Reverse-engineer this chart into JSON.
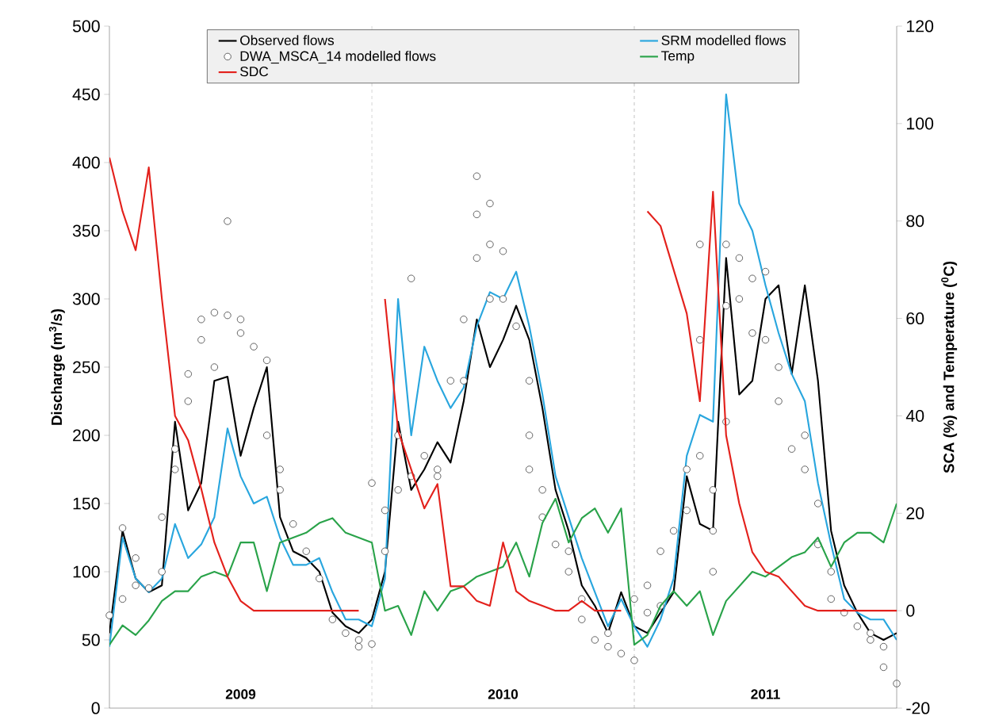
{
  "chart_data": {
    "type": "line",
    "ylabel": "Discharge (m$^{3}$/s)",
    "y2label": "SCA (%) and Temperature ($^{0}$C)",
    "categories": [
      null,
      null,
      null,
      null,
      null,
      null,
      null,
      null,
      null,
      null,
      null,
      null,
      null,
      null,
      null,
      null,
      null,
      null,
      null,
      null,
      null,
      null,
      null,
      null,
      null,
      null,
      null,
      null,
      null,
      null,
      null,
      null,
      null,
      null,
      null,
      null,
      null,
      null,
      null,
      null,
      null,
      null,
      null,
      null,
      null,
      null,
      null,
      null,
      null,
      null,
      null,
      null,
      null,
      null,
      null,
      null,
      null,
      null,
      null,
      null,
      null
    ],
    "ylim": [
      0,
      500
    ],
    "yticks": [
      0,
      50,
      100,
      150,
      200,
      250,
      300,
      350,
      400,
      450,
      500
    ],
    "y2lim": [
      -20,
      120
    ],
    "y2ticks": [
      -20,
      0,
      20,
      40,
      60,
      80,
      100,
      120
    ],
    "tick_labels": "y",
    "legend": "top",
    "annotations": [
      "2009",
      "2010",
      "2011"
    ],
    "series": [
      {
        "name": "Observed flows",
        "color": "#000000",
        "values": [
          55,
          130,
          95,
          85,
          90,
          210,
          145,
          165,
          240,
          243,
          185,
          220,
          250,
          140,
          115,
          110,
          100,
          70,
          60,
          55,
          65,
          100,
          210,
          160,
          175,
          195,
          180,
          225,
          285,
          250,
          270,
          295,
          270,
          220,
          160,
          130,
          90,
          75,
          55,
          85,
          60,
          55,
          70,
          85,
          170,
          135,
          130,
          330,
          230,
          240,
          300,
          310,
          245,
          310,
          240,
          130,
          90,
          70,
          55,
          50,
          55
        ]
      },
      {
        "name": "SRM modelled flows",
        "color": "#29a6de",
        "values": [
          45,
          125,
          95,
          85,
          95,
          135,
          110,
          120,
          140,
          205,
          170,
          150,
          155,
          125,
          105,
          105,
          110,
          85,
          65,
          65,
          60,
          95,
          300,
          200,
          265,
          240,
          220,
          235,
          280,
          305,
          300,
          320,
          280,
          230,
          170,
          140,
          110,
          85,
          60,
          80,
          60,
          45,
          65,
          95,
          185,
          215,
          210,
          450,
          370,
          350,
          310,
          275,
          245,
          225,
          165,
          120,
          80,
          70,
          65,
          65,
          50
        ]
      },
      {
        "name": "DWA_MSCA_14 modelled flows",
        "type": "scatter",
        "marker": "circle",
        "color": "#404040",
        "values": [
          68,
          80,
          110,
          88,
          100,
          175,
          225,
          270,
          250,
          288,
          285,
          265,
          255,
          175,
          135,
          115,
          95,
          65,
          55,
          45,
          47,
          115,
          160,
          170,
          185,
          175,
          240,
          240,
          330,
          340,
          300,
          280,
          200,
          140,
          120,
          100,
          65,
          50,
          45,
          40,
          35,
          70,
          75,
          130,
          145,
          270,
          130,
          295,
          300,
          275,
          320,
          250,
          190,
          175,
          150,
          100,
          70,
          60,
          55,
          45,
          18
        ]
      },
      {
        "type": "scatter",
        "marker": "circle",
        "color": "#404040",
        "values": [
          null,
          132,
          90,
          null,
          140,
          190,
          245,
          285,
          290,
          357,
          275,
          null,
          200,
          160,
          null,
          null,
          null,
          null,
          null,
          50,
          165,
          145,
          200,
          315,
          null,
          170,
          null,
          285,
          390,
          370,
          335,
          null,
          240,
          160,
          null,
          115,
          80,
          null,
          55,
          null,
          80,
          90,
          115,
          null,
          175,
          340,
          100,
          340,
          330,
          315,
          270,
          225,
          null,
          200,
          120,
          80,
          null,
          null,
          50,
          30,
          null
        ]
      },
      {
        "type": "scatter",
        "marker": "circle",
        "color": "#404040",
        "values": [
          null,
          null,
          null,
          null,
          null,
          null,
          null,
          null,
          null,
          null,
          null,
          null,
          null,
          null,
          null,
          null,
          null,
          null,
          null,
          null,
          null,
          null,
          null,
          null,
          null,
          null,
          null,
          null,
          362,
          300,
          null,
          null,
          175,
          null,
          null,
          null,
          null,
          null,
          null,
          null,
          null,
          null,
          null,
          null,
          null,
          185,
          160,
          210,
          null,
          null,
          null,
          null,
          null,
          null,
          null,
          null,
          null,
          null,
          null,
          null,
          null
        ]
      },
      {
        "name": "Temp",
        "axis": "y2",
        "color": "#2aa34a",
        "values": [
          -7,
          -3,
          -5,
          -2,
          2,
          4,
          4,
          7,
          8,
          7,
          14,
          14,
          4,
          14,
          15,
          16,
          18,
          19,
          16,
          15,
          14,
          0,
          1,
          -5,
          4,
          0,
          4,
          5,
          7,
          8,
          9,
          14,
          7,
          18,
          23,
          14,
          19,
          21,
          16,
          21,
          -7,
          -5,
          1,
          4,
          1,
          4,
          -5,
          2,
          5,
          8,
          7,
          9,
          11,
          12,
          15,
          9,
          14,
          16,
          16,
          14,
          22
        ]
      },
      {
        "name": "SDC",
        "axis": "y2",
        "color": "#e3211c",
        "values": [
          93,
          82,
          74,
          91,
          64,
          40,
          35,
          25,
          14,
          7,
          2,
          0,
          0,
          0,
          0,
          0,
          0,
          0,
          0,
          0,
          null,
          64,
          37,
          29,
          21,
          26,
          5,
          5,
          2,
          1,
          14,
          4,
          2,
          1,
          0,
          0,
          2,
          0,
          0,
          0,
          null,
          82,
          79,
          70,
          61,
          43,
          86,
          36,
          22,
          12,
          8,
          7,
          4,
          1,
          0,
          0,
          0,
          0,
          0,
          0,
          0
        ]
      }
    ]
  }
}
